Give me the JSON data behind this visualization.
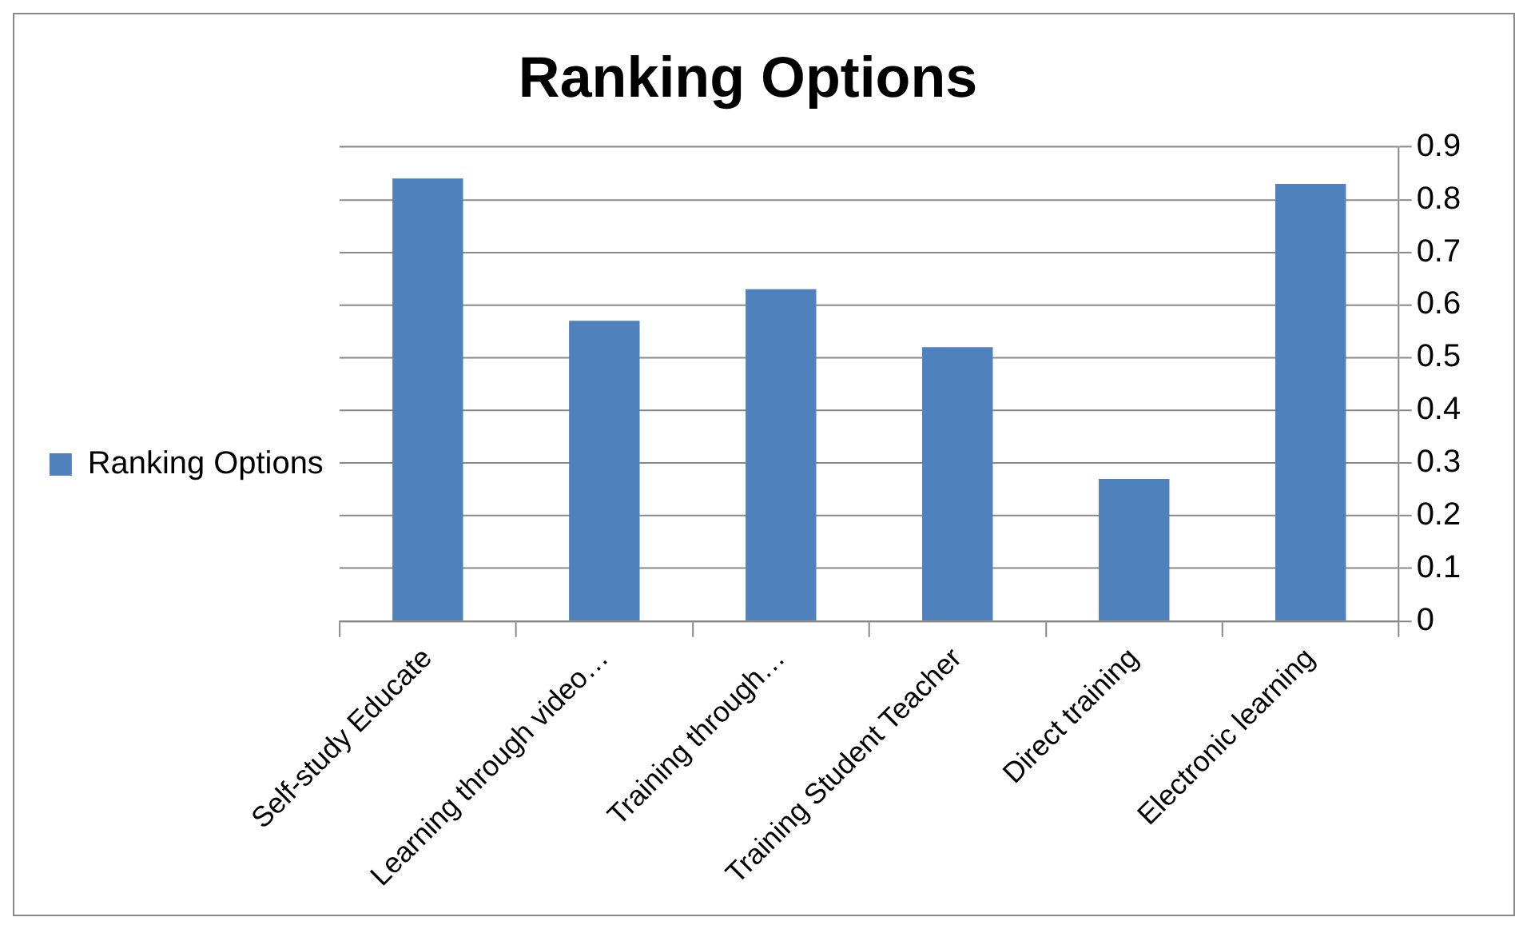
{
  "chart_data": {
    "type": "bar",
    "title": "Ranking Options",
    "categories": [
      "Self-study Educate",
      "Learning through video…",
      "Training through…",
      "Training Student Teacher",
      "Direct training",
      "Electronic learning"
    ],
    "series": [
      {
        "name": "Ranking Options",
        "color": "#4f81bd",
        "values": [
          0.84,
          0.57,
          0.63,
          0.52,
          0.27,
          0.83
        ]
      }
    ],
    "ylim": [
      0,
      0.9
    ],
    "yticks": [
      0,
      0.1,
      0.2,
      0.3,
      0.4,
      0.5,
      0.6,
      0.7,
      0.8,
      0.9
    ],
    "grid": "y",
    "legend": "left"
  }
}
